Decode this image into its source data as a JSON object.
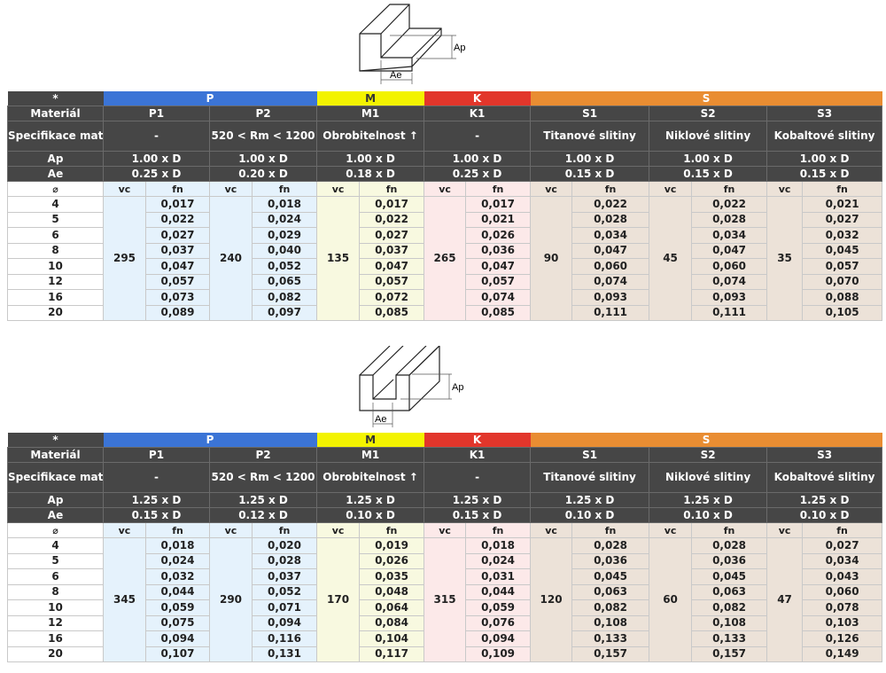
{
  "diagram_labels": {
    "ap": "Ap",
    "ae": "Ae"
  },
  "colors": {
    "P": "#3b74d6",
    "M": "#f3f300",
    "K": "#e2362b",
    "S": "#e98d32",
    "header": "#464646"
  },
  "tables": [
    {
      "corner": "*",
      "groups": [
        {
          "key": "P",
          "label": "P",
          "span": 2
        },
        {
          "key": "M",
          "label": "M",
          "span": 1
        },
        {
          "key": "K",
          "label": "K",
          "span": 1
        },
        {
          "key": "S",
          "label": "S",
          "span": 3
        }
      ],
      "row_labels": {
        "material": "Materiál",
        "spec": "Specifikace mat.",
        "ap": "Ap",
        "ae": "Ae",
        "dia": "⌀",
        "vc": "vc",
        "fn": "fn"
      },
      "materials": [
        {
          "group": "P",
          "name": "P1",
          "spec": "-",
          "ap": "1.00 x D",
          "ae": "0.25 x D",
          "vc": "295",
          "fn": [
            "0,017",
            "0,022",
            "0,027",
            "0,037",
            "0,047",
            "0,057",
            "0,073",
            "0,089"
          ]
        },
        {
          "group": "P",
          "name": "P2",
          "spec": "520 < Rm < 1200",
          "ap": "1.00 x D",
          "ae": "0.20 x D",
          "vc": "240",
          "fn": [
            "0,018",
            "0,024",
            "0,029",
            "0,040",
            "0,052",
            "0,065",
            "0,082",
            "0,097"
          ]
        },
        {
          "group": "M",
          "name": "M1",
          "spec": "Obrobitelnost ↑",
          "ap": "1.00 x D",
          "ae": "0.18 x D",
          "vc": "135",
          "fn": [
            "0,017",
            "0,022",
            "0,027",
            "0,037",
            "0,047",
            "0,057",
            "0,072",
            "0,085"
          ]
        },
        {
          "group": "K",
          "name": "K1",
          "spec": "-",
          "ap": "1.00 x D",
          "ae": "0.25 x D",
          "vc": "265",
          "fn": [
            "0,017",
            "0,021",
            "0,026",
            "0,036",
            "0,047",
            "0,057",
            "0,074",
            "0,085"
          ]
        },
        {
          "group": "S",
          "name": "S1",
          "spec": "Titanové slitiny",
          "ap": "1.00 x D",
          "ae": "0.15 x D",
          "vc": "90",
          "fn": [
            "0,022",
            "0,028",
            "0,034",
            "0,047",
            "0,060",
            "0,074",
            "0,093",
            "0,111"
          ]
        },
        {
          "group": "S",
          "name": "S2",
          "spec": "Niklové slitiny",
          "ap": "1.00 x D",
          "ae": "0.15 x D",
          "vc": "45",
          "fn": [
            "0,022",
            "0,028",
            "0,034",
            "0,047",
            "0,060",
            "0,074",
            "0,093",
            "0,111"
          ]
        },
        {
          "group": "S",
          "name": "S3",
          "spec": "Kobaltové slitiny",
          "ap": "1.00 x D",
          "ae": "0.15 x D",
          "vc": "35",
          "fn": [
            "0,021",
            "0,027",
            "0,032",
            "0,045",
            "0,057",
            "0,070",
            "0,088",
            "0,105"
          ]
        }
      ],
      "diameters": [
        "4",
        "5",
        "6",
        "8",
        "10",
        "12",
        "16",
        "20"
      ]
    },
    {
      "corner": "*",
      "groups": [
        {
          "key": "P",
          "label": "P",
          "span": 2
        },
        {
          "key": "M",
          "label": "M",
          "span": 1
        },
        {
          "key": "K",
          "label": "K",
          "span": 1
        },
        {
          "key": "S",
          "label": "S",
          "span": 3
        }
      ],
      "row_labels": {
        "material": "Materiál",
        "spec": "Specifikace mat.",
        "ap": "Ap",
        "ae": "Ae",
        "dia": "⌀",
        "vc": "vc",
        "fn": "fn"
      },
      "materials": [
        {
          "group": "P",
          "name": "P1",
          "spec": "-",
          "ap": "1.25 x D",
          "ae": "0.15 x D",
          "vc": "345",
          "fn": [
            "0,018",
            "0,024",
            "0,032",
            "0,044",
            "0,059",
            "0,075",
            "0,094",
            "0,107"
          ]
        },
        {
          "group": "P",
          "name": "P2",
          "spec": "520 < Rm < 1200",
          "ap": "1.25 x D",
          "ae": "0.12 x D",
          "vc": "290",
          "fn": [
            "0,020",
            "0,028",
            "0,037",
            "0,052",
            "0,071",
            "0,094",
            "0,116",
            "0,131"
          ]
        },
        {
          "group": "M",
          "name": "M1",
          "spec": "Obrobitelnost ↑",
          "ap": "1.25 x D",
          "ae": "0.10 x D",
          "vc": "170",
          "fn": [
            "0,019",
            "0,026",
            "0,035",
            "0,048",
            "0,064",
            "0,084",
            "0,104",
            "0,117"
          ]
        },
        {
          "group": "K",
          "name": "K1",
          "spec": "-",
          "ap": "1.25 x D",
          "ae": "0.15 x D",
          "vc": "315",
          "fn": [
            "0,018",
            "0,024",
            "0,031",
            "0,044",
            "0,059",
            "0,076",
            "0,094",
            "0,109"
          ]
        },
        {
          "group": "S",
          "name": "S1",
          "spec": "Titanové slitiny",
          "ap": "1.25 x D",
          "ae": "0.10 x D",
          "vc": "120",
          "fn": [
            "0,028",
            "0,036",
            "0,045",
            "0,063",
            "0,082",
            "0,108",
            "0,133",
            "0,157"
          ]
        },
        {
          "group": "S",
          "name": "S2",
          "spec": "Niklové slitiny",
          "ap": "1.25 x D",
          "ae": "0.10 x D",
          "vc": "60",
          "fn": [
            "0,028",
            "0,036",
            "0,045",
            "0,063",
            "0,082",
            "0,108",
            "0,133",
            "0,157"
          ]
        },
        {
          "group": "S",
          "name": "S3",
          "spec": "Kobaltové slitiny",
          "ap": "1.25 x D",
          "ae": "0.10 x D",
          "vc": "47",
          "fn": [
            "0,027",
            "0,034",
            "0,043",
            "0,060",
            "0,078",
            "0,103",
            "0,126",
            "0,149"
          ]
        }
      ],
      "diameters": [
        "4",
        "5",
        "6",
        "8",
        "10",
        "12",
        "16",
        "20"
      ]
    }
  ]
}
